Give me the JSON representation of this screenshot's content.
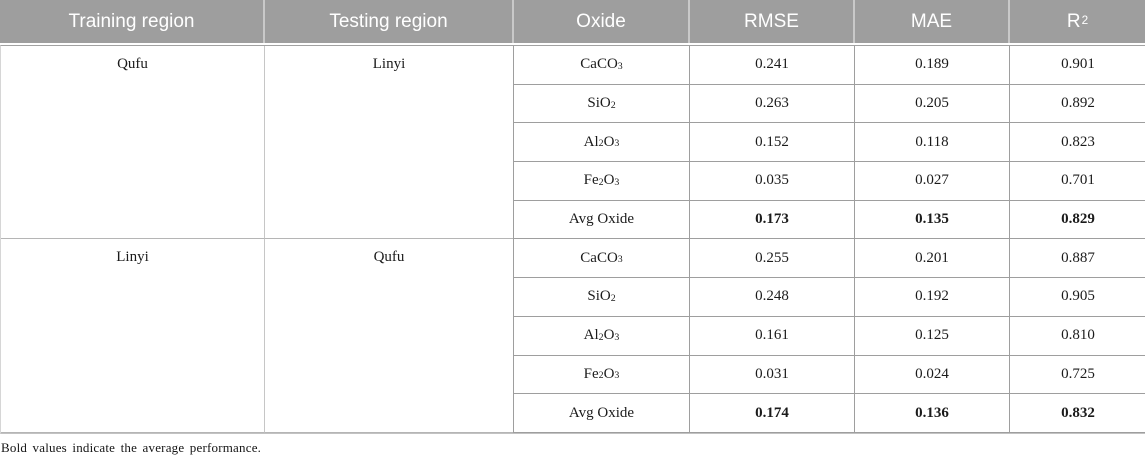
{
  "header": {
    "columns": [
      {
        "label": "Training region"
      },
      {
        "label": "Testing region"
      },
      {
        "label": "Oxide"
      },
      {
        "label": "RMSE"
      },
      {
        "label": "MAE"
      },
      {
        "label": "R",
        "sup": "2"
      }
    ]
  },
  "blocks": [
    {
      "training": "Qufu",
      "testing": "Linyi",
      "rows": [
        {
          "oxide": {
            "p1": "CaCO",
            "s1": "3",
            "p2": "",
            "s2": ""
          },
          "rmse": "0.241",
          "mae": "0.189",
          "r2": "0.901"
        },
        {
          "oxide": {
            "p1": "SiO",
            "s1": "2",
            "p2": "",
            "s2": ""
          },
          "rmse": "0.263",
          "mae": "0.205",
          "r2": "0.892"
        },
        {
          "oxide": {
            "p1": "Al",
            "s1": "2",
            "p2": "O",
            "s2": "3"
          },
          "rmse": "0.152",
          "mae": "0.118",
          "r2": "0.823"
        },
        {
          "oxide": {
            "p1": "Fe",
            "s1": "2",
            "p2": "O",
            "s2": "3"
          },
          "rmse": "0.035",
          "mae": "0.027",
          "r2": "0.701"
        },
        {
          "oxide": {
            "p1": "Avg Oxide",
            "s1": "",
            "p2": "",
            "s2": ""
          },
          "rmse": "0.173",
          "mae": "0.135",
          "r2": "0.829",
          "bold": true
        }
      ]
    },
    {
      "training": "Linyi",
      "testing": "Qufu",
      "rows": [
        {
          "oxide": {
            "p1": "CaCO",
            "s1": "3",
            "p2": "",
            "s2": ""
          },
          "rmse": "0.255",
          "mae": "0.201",
          "r2": "0.887"
        },
        {
          "oxide": {
            "p1": "SiO",
            "s1": "2",
            "p2": "",
            "s2": ""
          },
          "rmse": "0.248",
          "mae": "0.192",
          "r2": "0.905"
        },
        {
          "oxide": {
            "p1": "Al",
            "s1": "2",
            "p2": "O",
            "s2": "3"
          },
          "rmse": "0.161",
          "mae": "0.125",
          "r2": "0.810"
        },
        {
          "oxide": {
            "p1": "Fe",
            "s1": "2",
            "p2": "O",
            "s2": "3"
          },
          "rmse": "0.031",
          "mae": "0.024",
          "r2": "0.725"
        },
        {
          "oxide": {
            "p1": "Avg Oxide",
            "s1": "",
            "p2": "",
            "s2": ""
          },
          "rmse": "0.174",
          "mae": "0.136",
          "r2": "0.832",
          "bold": true
        }
      ]
    }
  ],
  "footnote": "Bold values indicate the average performance.",
  "colors": {
    "header_bg": "#9e9e9e",
    "header_text": "#ffffff",
    "grid_line": "#9a9a9a",
    "outer_line": "#cccccc"
  }
}
